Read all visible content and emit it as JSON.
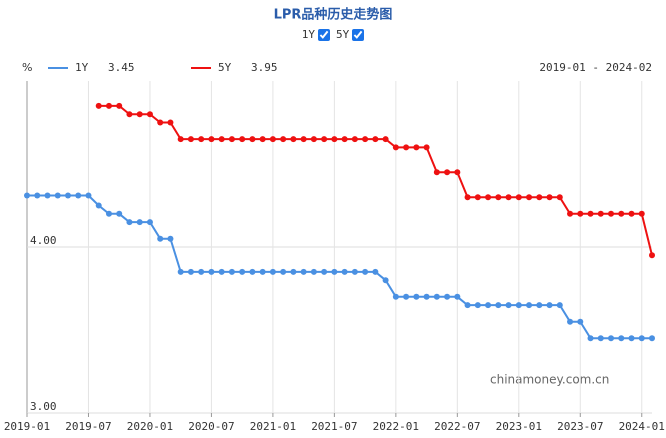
{
  "chart_data": {
    "type": "line",
    "title": "LPR品种历史走势图",
    "y_unit": "%",
    "range_label": "2019-01 - 2024-02",
    "watermark": "chinamoney.com.cn",
    "categories": [
      "2019-01",
      null,
      null,
      null,
      null,
      null,
      "2019-07",
      null,
      null,
      null,
      null,
      null,
      "2020-01",
      null,
      null,
      null,
      null,
      null,
      "2020-07",
      null,
      null,
      null,
      null,
      null,
      "2021-01",
      null,
      null,
      null,
      null,
      null,
      "2021-07",
      null,
      null,
      null,
      null,
      null,
      "2022-01",
      null,
      null,
      null,
      null,
      null,
      "2022-07",
      null,
      null,
      null,
      null,
      null,
      "2023-01",
      null,
      null,
      null,
      null,
      null,
      "2023-07",
      null,
      null,
      null,
      null,
      null,
      "2024-01",
      null
    ],
    "series": [
      {
        "name": "1Y",
        "color": "#4a90e2",
        "values": [
          4.31,
          4.31,
          4.31,
          4.31,
          4.31,
          4.31,
          4.31,
          4.25,
          4.2,
          4.2,
          4.15,
          4.15,
          4.15,
          4.05,
          4.05,
          3.85,
          3.85,
          3.85,
          3.85,
          3.85,
          3.85,
          3.85,
          3.85,
          3.85,
          3.85,
          3.85,
          3.85,
          3.85,
          3.85,
          3.85,
          3.85,
          3.85,
          3.85,
          3.85,
          3.85,
          3.8,
          3.7,
          3.7,
          3.7,
          3.7,
          3.7,
          3.7,
          3.7,
          3.65,
          3.65,
          3.65,
          3.65,
          3.65,
          3.65,
          3.65,
          3.65,
          3.65,
          3.65,
          3.55,
          3.55,
          3.45,
          3.45,
          3.45,
          3.45,
          3.45,
          3.45,
          3.45
        ]
      },
      {
        "name": "5Y",
        "color": "#ee1111",
        "values": [
          null,
          null,
          null,
          null,
          null,
          null,
          null,
          4.85,
          4.85,
          4.85,
          4.8,
          4.8,
          4.8,
          4.75,
          4.75,
          4.65,
          4.65,
          4.65,
          4.65,
          4.65,
          4.65,
          4.65,
          4.65,
          4.65,
          4.65,
          4.65,
          4.65,
          4.65,
          4.65,
          4.65,
          4.65,
          4.65,
          4.65,
          4.65,
          4.65,
          4.65,
          4.6,
          4.6,
          4.6,
          4.6,
          4.45,
          4.45,
          4.45,
          4.3,
          4.3,
          4.3,
          4.3,
          4.3,
          4.3,
          4.3,
          4.3,
          4.3,
          4.3,
          4.2,
          4.2,
          4.2,
          4.2,
          4.2,
          4.2,
          4.2,
          4.2,
          3.95
        ]
      }
    ],
    "ylim": [
      3,
      5
    ],
    "yticks": [
      {
        "value": 3,
        "label": "3.00"
      },
      {
        "value": 4,
        "label": "4.00"
      }
    ],
    "grid": true
  }
}
